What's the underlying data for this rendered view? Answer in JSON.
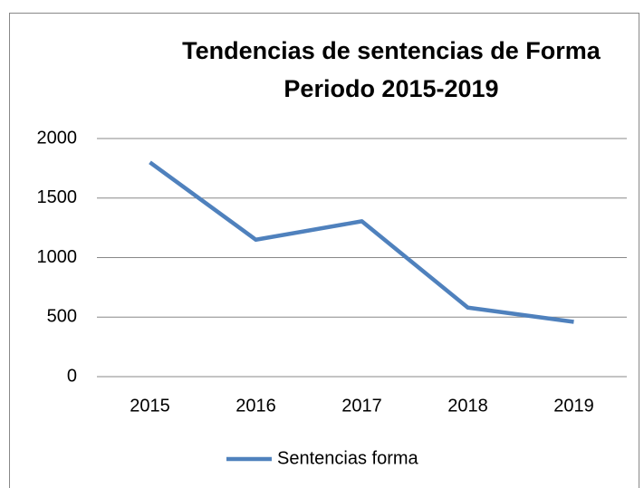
{
  "chart_data": {
    "type": "line",
    "title": [
      "Tendencias de sentencias de Forma",
      "Periodo 2015-2019"
    ],
    "categories": [
      "2015",
      "2016",
      "2017",
      "2018",
      "2019"
    ],
    "series": [
      {
        "name": "Sentencias forma",
        "color": "#4f81bd",
        "values": [
          1800,
          1150,
          1305,
          580,
          460
        ]
      }
    ],
    "ylim": [
      0,
      2000
    ],
    "yticks": [
      0,
      500,
      1000,
      1500,
      2000
    ],
    "grid": true,
    "legend": "bottom"
  }
}
